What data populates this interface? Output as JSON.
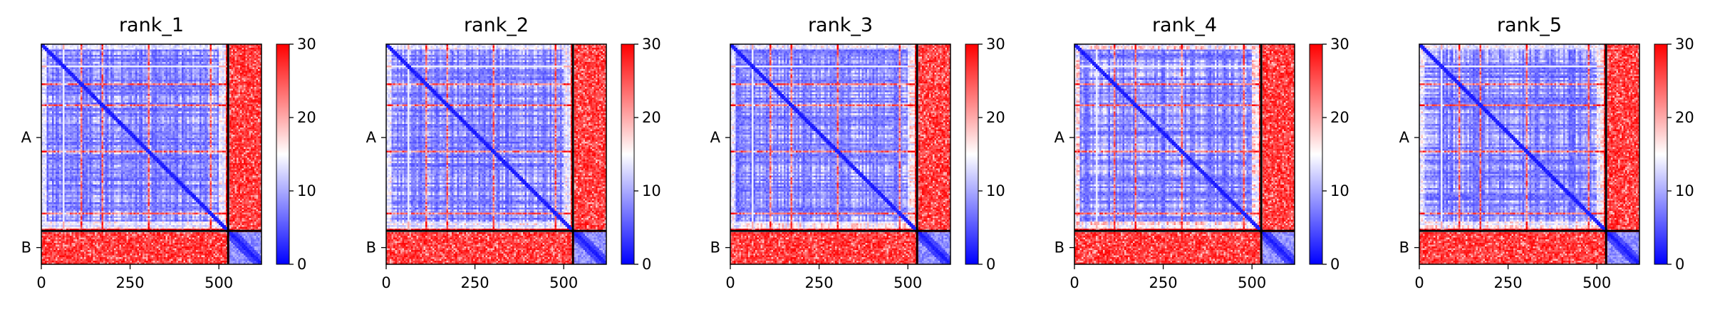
{
  "figure": {
    "description_title": ""
  },
  "colormap": {
    "low": "#0000ff",
    "mid": "#ffffff",
    "high": "#ff0000"
  },
  "chart_data": [
    {
      "type": "heatmap",
      "title": "rank_1",
      "seed": 11
    },
    {
      "type": "heatmap",
      "title": "rank_2",
      "seed": 23
    },
    {
      "type": "heatmap",
      "title": "rank_3",
      "seed": 37
    },
    {
      "type": "heatmap",
      "title": "rank_4",
      "seed": 41
    },
    {
      "type": "heatmap",
      "title": "rank_5",
      "seed": 59
    }
  ],
  "shared": {
    "n_residues": 620,
    "chain_break": 526,
    "chains": [
      {
        "label": "A",
        "start": 0,
        "end": 526
      },
      {
        "label": "B",
        "start": 526,
        "end": 620
      }
    ],
    "xticks": [
      0,
      250,
      500
    ],
    "xtick_labels": [
      "0",
      "250",
      "500"
    ],
    "colorbar": {
      "min": 0,
      "max": 30,
      "ticks": [
        0,
        10,
        20,
        30
      ],
      "tick_labels": [
        "0",
        "10",
        "20",
        "30"
      ]
    },
    "pae_max": 30
  }
}
